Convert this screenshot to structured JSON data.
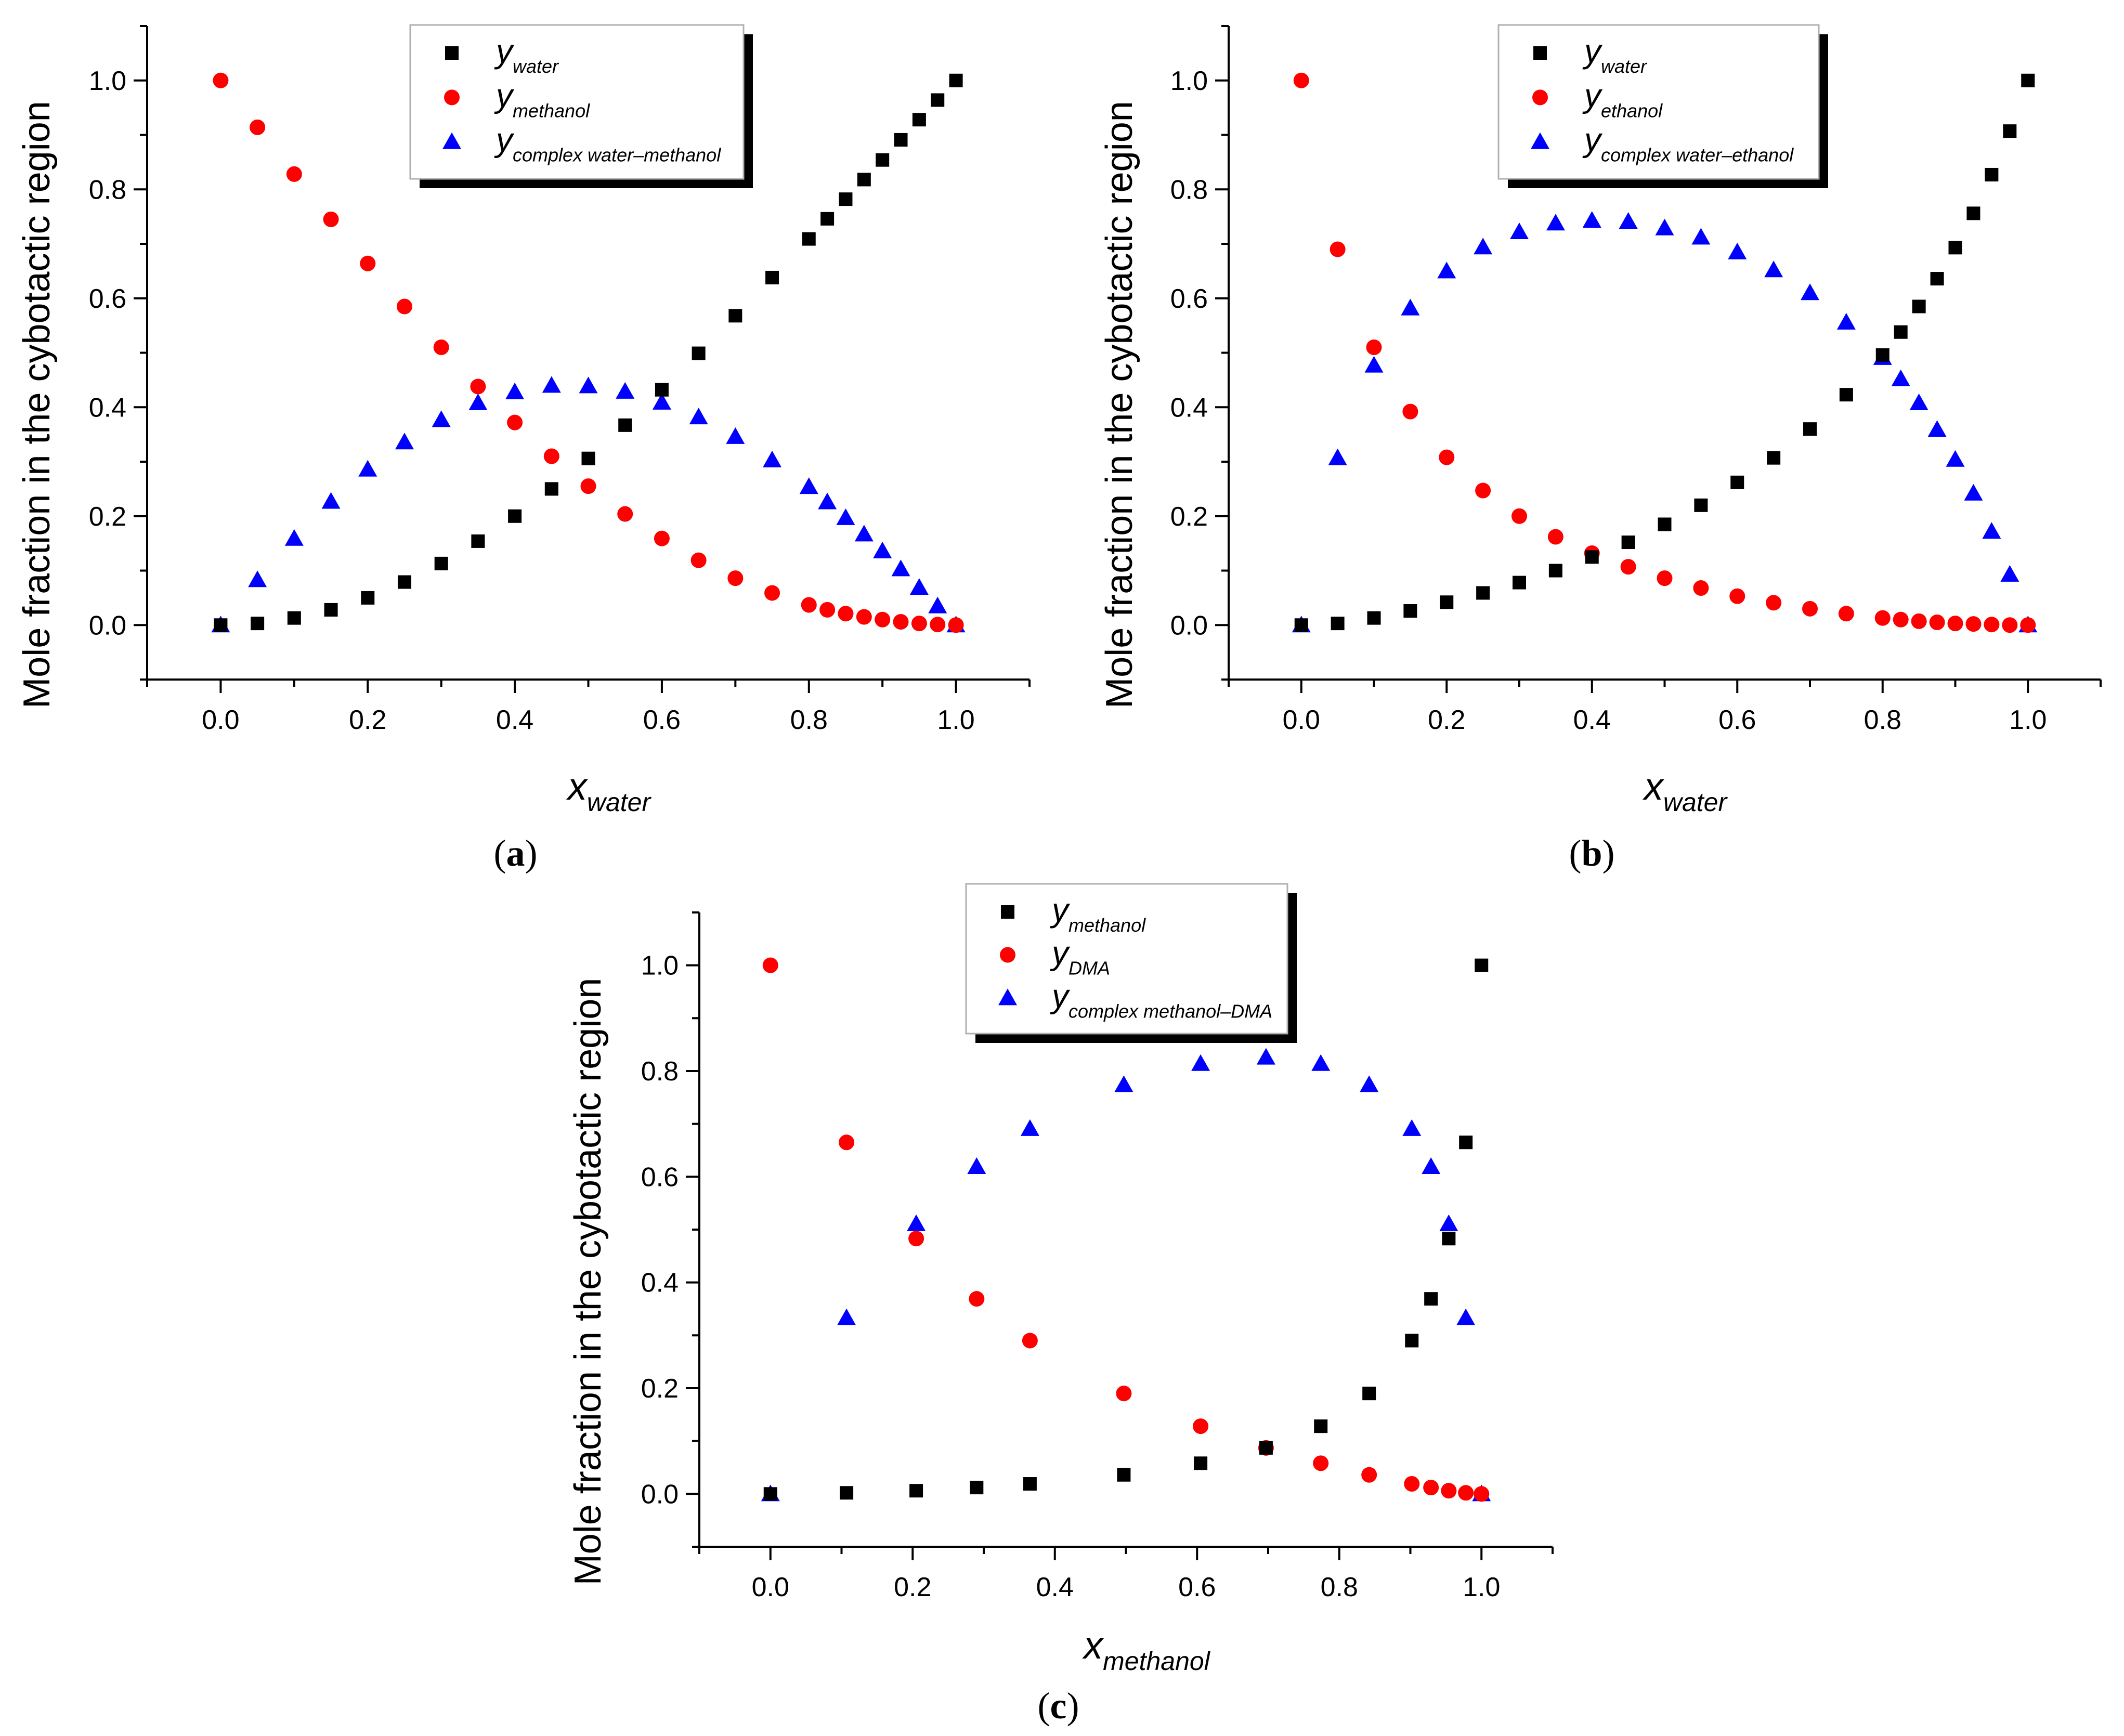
{
  "colors": {
    "black_series": "#000000",
    "red_series": "#ff0000",
    "blue_series": "#0000ff",
    "axis": "#000000"
  },
  "chart_data": [
    {
      "panel": "(a)",
      "type": "scatter",
      "xlabel_main": "x",
      "xlabel_sub": "water",
      "ylabel": "Mole fraction in the cybotactic region",
      "xlim": [
        -0.1,
        1.1
      ],
      "ylim": [
        -0.1,
        1.1
      ],
      "xticks": [
        "0.0",
        "0.2",
        "0.4",
        "0.6",
        "0.8",
        "1.0"
      ],
      "yticks": [
        "0.0",
        "0.2",
        "0.4",
        "0.6",
        "0.8",
        "1.0"
      ],
      "legend_position": "top-center",
      "series": [
        {
          "name_main": "y",
          "name_sub": "water",
          "marker": "square",
          "color": "#000000",
          "x": [
            0,
            0.05,
            0.1,
            0.15,
            0.2,
            0.25,
            0.3,
            0.35,
            0.4,
            0.45,
            0.5,
            0.55,
            0.6,
            0.65,
            0.7,
            0.75,
            0.8,
            0.825,
            0.85,
            0.875,
            0.9,
            0.925,
            0.95,
            0.975,
            1.0
          ],
          "y": [
            0,
            0.003,
            0.013,
            0.028,
            0.05,
            0.079,
            0.113,
            0.154,
            0.2,
            0.25,
            0.306,
            0.367,
            0.432,
            0.499,
            0.568,
            0.638,
            0.709,
            0.746,
            0.782,
            0.818,
            0.854,
            0.891,
            0.928,
            0.964,
            1.0
          ]
        },
        {
          "name_main": "y",
          "name_sub": "methanol",
          "marker": "circle",
          "color": "#ff0000",
          "x": [
            0,
            0.05,
            0.1,
            0.15,
            0.2,
            0.25,
            0.3,
            0.35,
            0.4,
            0.45,
            0.5,
            0.55,
            0.6,
            0.65,
            0.7,
            0.75,
            0.8,
            0.825,
            0.85,
            0.875,
            0.9,
            0.925,
            0.95,
            0.975,
            1.0
          ],
          "y": [
            1.0,
            0.914,
            0.828,
            0.745,
            0.664,
            0.585,
            0.51,
            0.438,
            0.372,
            0.31,
            0.255,
            0.204,
            0.159,
            0.119,
            0.086,
            0.059,
            0.037,
            0.028,
            0.021,
            0.015,
            0.01,
            0.006,
            0.003,
            0.001,
            0
          ]
        },
        {
          "name_main": "y",
          "name_sub": "complex water–methanol",
          "marker": "triangle",
          "color": "#0000ff",
          "x": [
            0,
            0.05,
            0.1,
            0.15,
            0.2,
            0.25,
            0.3,
            0.35,
            0.4,
            0.45,
            0.5,
            0.55,
            0.6,
            0.65,
            0.7,
            0.75,
            0.8,
            0.825,
            0.85,
            0.875,
            0.9,
            0.925,
            0.95,
            0.975,
            1.0
          ],
          "y": [
            0,
            0.083,
            0.159,
            0.227,
            0.286,
            0.336,
            0.377,
            0.408,
            0.428,
            0.44,
            0.439,
            0.429,
            0.409,
            0.382,
            0.346,
            0.303,
            0.254,
            0.226,
            0.197,
            0.167,
            0.136,
            0.103,
            0.069,
            0.035,
            0
          ]
        }
      ]
    },
    {
      "panel": "(b)",
      "type": "scatter",
      "xlabel_main": "x",
      "xlabel_sub": "water",
      "ylabel": "Mole fraction in the cybotactic region",
      "xlim": [
        -0.1,
        1.1
      ],
      "ylim": [
        -0.1,
        1.1
      ],
      "xticks": [
        "0.0",
        "0.2",
        "0.4",
        "0.6",
        "0.8",
        "1.0"
      ],
      "yticks": [
        "0.0",
        "0.2",
        "0.4",
        "0.6",
        "0.8",
        "1.0"
      ],
      "legend_position": "top-center",
      "series": [
        {
          "name_main": "y",
          "name_sub": "water",
          "marker": "square",
          "color": "#000000",
          "x": [
            0,
            0.05,
            0.1,
            0.15,
            0.2,
            0.25,
            0.3,
            0.35,
            0.4,
            0.45,
            0.5,
            0.55,
            0.6,
            0.65,
            0.7,
            0.75,
            0.8,
            0.825,
            0.85,
            0.875,
            0.9,
            0.925,
            0.95,
            0.975,
            1.0
          ],
          "y": [
            0,
            0.003,
            0.013,
            0.026,
            0.042,
            0.059,
            0.078,
            0.1,
            0.125,
            0.152,
            0.185,
            0.22,
            0.262,
            0.307,
            0.36,
            0.423,
            0.496,
            0.538,
            0.585,
            0.636,
            0.693,
            0.756,
            0.827,
            0.907,
            1.0
          ]
        },
        {
          "name_main": "y",
          "name_sub": "ethanol",
          "marker": "circle",
          "color": "#ff0000",
          "x": [
            0,
            0.05,
            0.1,
            0.15,
            0.2,
            0.25,
            0.3,
            0.35,
            0.4,
            0.45,
            0.5,
            0.55,
            0.6,
            0.65,
            0.7,
            0.75,
            0.8,
            0.825,
            0.85,
            0.875,
            0.9,
            0.925,
            0.95,
            0.975,
            1.0
          ],
          "y": [
            1.0,
            0.69,
            0.51,
            0.392,
            0.308,
            0.247,
            0.2,
            0.162,
            0.132,
            0.107,
            0.086,
            0.068,
            0.053,
            0.041,
            0.03,
            0.021,
            0.013,
            0.01,
            0.007,
            0.005,
            0.003,
            0.002,
            0.001,
            0,
            0
          ]
        },
        {
          "name_main": "y",
          "name_sub": "complex water–ethanol",
          "marker": "triangle",
          "color": "#0000ff",
          "x": [
            0,
            0.05,
            0.1,
            0.15,
            0.2,
            0.25,
            0.3,
            0.35,
            0.4,
            0.45,
            0.5,
            0.55,
            0.6,
            0.65,
            0.7,
            0.75,
            0.8,
            0.825,
            0.85,
            0.875,
            0.9,
            0.925,
            0.95,
            0.975,
            1.0
          ],
          "y": [
            0,
            0.307,
            0.477,
            0.582,
            0.65,
            0.694,
            0.722,
            0.738,
            0.743,
            0.741,
            0.729,
            0.712,
            0.685,
            0.652,
            0.61,
            0.556,
            0.491,
            0.452,
            0.408,
            0.359,
            0.304,
            0.242,
            0.172,
            0.093,
            0
          ]
        }
      ]
    },
    {
      "panel": "(c)",
      "type": "scatter",
      "xlabel_main": "x",
      "xlabel_sub": "methanol",
      "ylabel": "Mole fraction in the cybotactic region",
      "xlim": [
        -0.1,
        1.1
      ],
      "ylim": [
        -0.1,
        1.1
      ],
      "xticks": [
        "0.0",
        "0.2",
        "0.4",
        "0.6",
        "0.8",
        "1.0"
      ],
      "yticks": [
        "0.0",
        "0.2",
        "0.4",
        "0.6",
        "0.8",
        "1.0"
      ],
      "legend_position": "top-center",
      "series": [
        {
          "name_main": "y",
          "name_sub": "methanol",
          "marker": "square",
          "color": "#000000",
          "x": [
            0,
            0.107,
            0.205,
            0.29,
            0.365,
            0.497,
            0.605,
            0.697,
            0.774,
            0.842,
            0.902,
            0.929,
            0.954,
            0.978,
            1.0
          ],
          "y": [
            0,
            0.002,
            0.006,
            0.012,
            0.019,
            0.036,
            0.058,
            0.087,
            0.128,
            0.19,
            0.29,
            0.369,
            0.483,
            0.665,
            1.0
          ]
        },
        {
          "name_main": "y",
          "name_sub": "DMA",
          "marker": "circle",
          "color": "#ff0000",
          "x": [
            0,
            0.107,
            0.205,
            0.29,
            0.365,
            0.497,
            0.605,
            0.697,
            0.774,
            0.842,
            0.902,
            0.929,
            0.954,
            0.978,
            1.0
          ],
          "y": [
            1.0,
            0.665,
            0.483,
            0.369,
            0.29,
            0.19,
            0.128,
            0.087,
            0.058,
            0.036,
            0.019,
            0.012,
            0.006,
            0.002,
            0
          ]
        },
        {
          "name_main": "y",
          "name_sub": "complex methanol–DMA",
          "marker": "triangle",
          "color": "#0000ff",
          "x": [
            0,
            0.107,
            0.205,
            0.29,
            0.365,
            0.497,
            0.605,
            0.697,
            0.774,
            0.842,
            0.902,
            0.929,
            0.954,
            0.978,
            1.0
          ],
          "y": [
            0,
            0.333,
            0.511,
            0.619,
            0.691,
            0.774,
            0.814,
            0.826,
            0.814,
            0.774,
            0.691,
            0.619,
            0.511,
            0.333,
            0
          ]
        }
      ]
    }
  ]
}
